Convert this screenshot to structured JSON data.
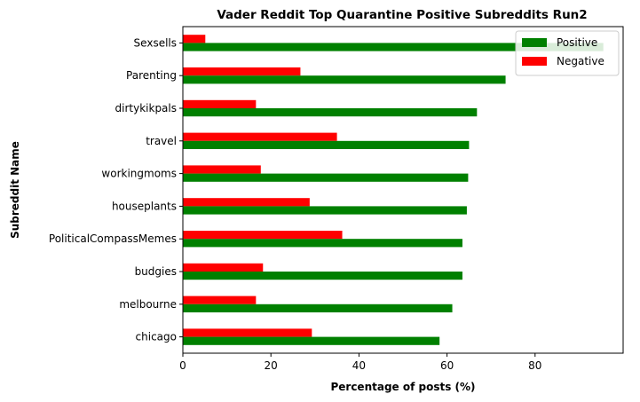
{
  "chart_data": {
    "type": "bar",
    "orientation": "horizontal",
    "title": "Vader Reddit Top Quarantine Positive Subreddits Run2",
    "xlabel": "Percentage of posts (%)",
    "ylabel": "Subreddit Name",
    "xlim": [
      0,
      100
    ],
    "xticks": [
      0,
      20,
      40,
      60,
      80
    ],
    "categories": [
      "Sexsells",
      "Parenting",
      "dirtykikpals",
      "travel",
      "workingmoms",
      "houseplants",
      "PoliticalCompassMemes",
      "budgies",
      "melbourne",
      "chicago"
    ],
    "series": [
      {
        "name": "Positive",
        "color": "#008000",
        "values": [
          95.5,
          73.3,
          66.8,
          65.0,
          64.8,
          64.5,
          63.5,
          63.5,
          61.2,
          58.3
        ]
      },
      {
        "name": "Negative",
        "color": "#ff0000",
        "values": [
          5.1,
          26.7,
          16.6,
          35.0,
          17.7,
          28.8,
          36.2,
          18.2,
          16.6,
          29.3
        ]
      }
    ],
    "legend": "top-right",
    "grid": false
  }
}
